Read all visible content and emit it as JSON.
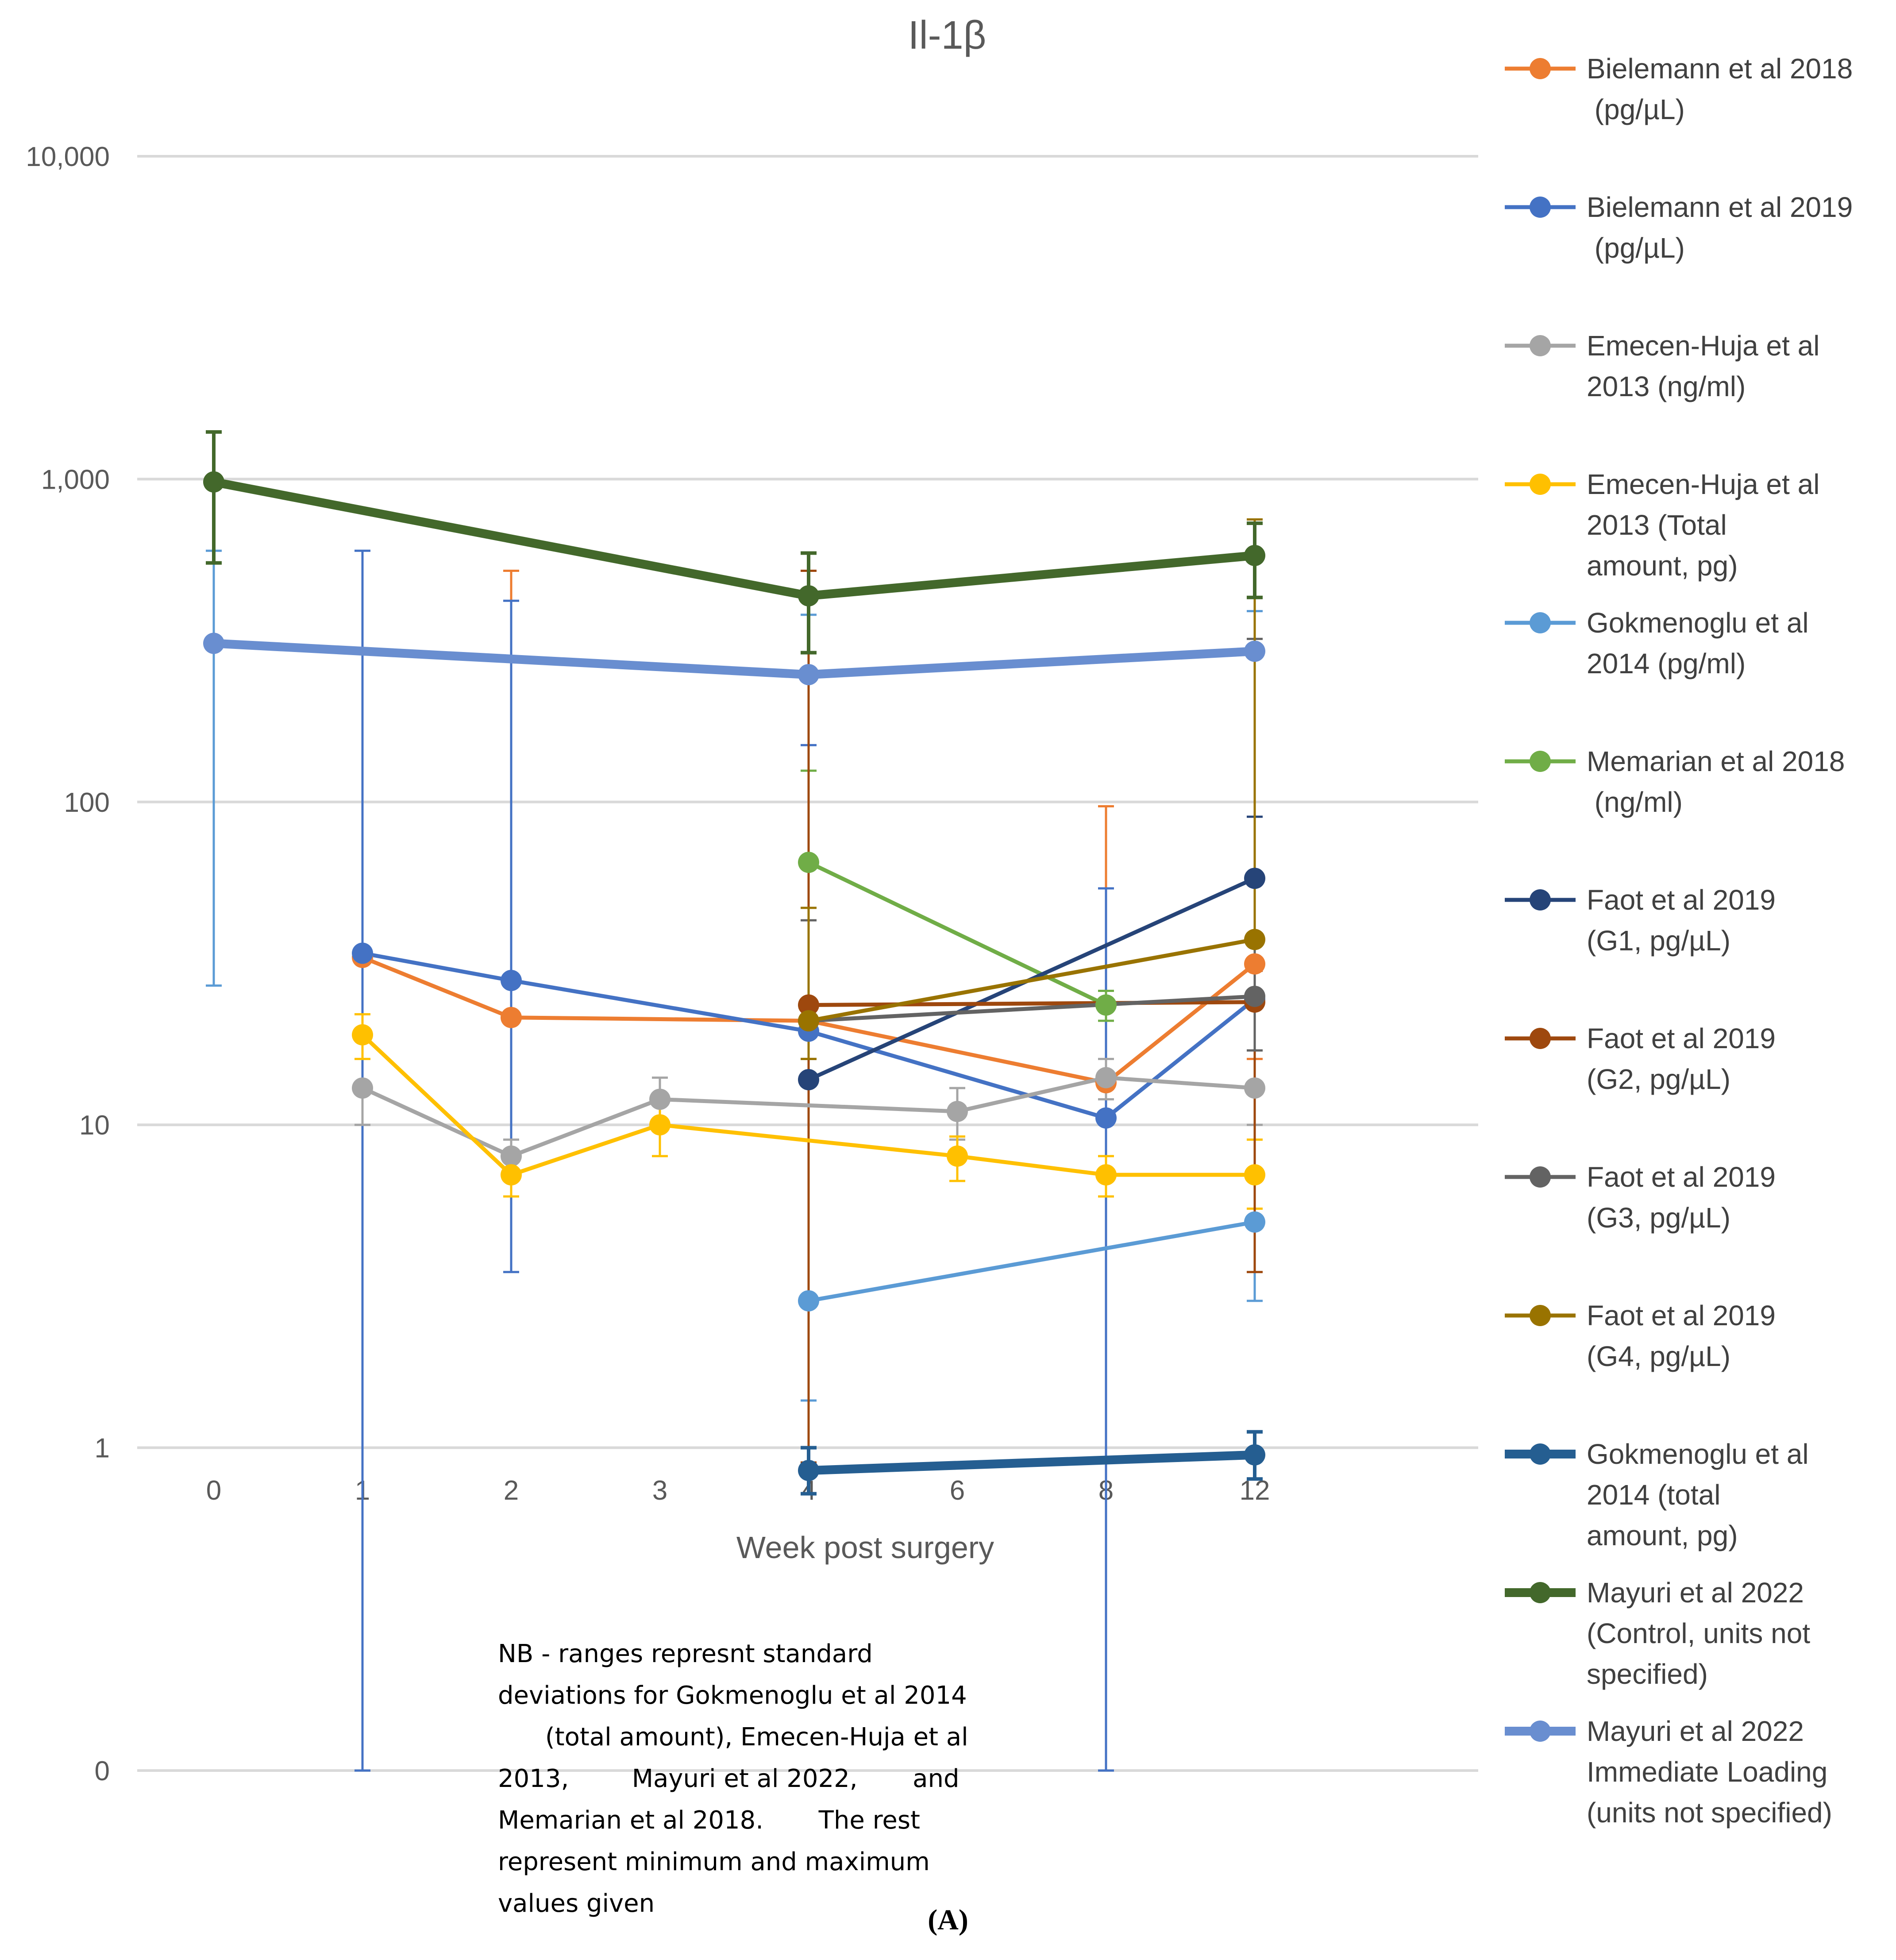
{
  "chart_data": {
    "type": "line",
    "title": "Il-1β",
    "xlabel": "Week post surgery",
    "ylabel": "",
    "yscale": "log",
    "ylim": [
      0.1,
      10000
    ],
    "categories": [
      "0",
      "1",
      "2",
      "3",
      "4",
      "6",
      "8",
      "12"
    ],
    "ytick_labels": [
      {
        "value": 10000,
        "label": "10,000"
      },
      {
        "value": 1000,
        "label": "1,000"
      },
      {
        "value": 100,
        "label": "100"
      },
      {
        "value": 10,
        "label": "10"
      },
      {
        "value": 1,
        "label": "1"
      },
      {
        "value": 0.1,
        "label": "0"
      }
    ],
    "grid": true,
    "legend_position": "right",
    "series": [
      {
        "name": "Bielemann et al 2018 (pg/µL)",
        "legend": [
          "Bielemann et al 2018",
          "      (pg/µL)"
        ],
        "color": "#ED7D31",
        "lw": 1,
        "points": [
          {
            "x": "1",
            "y": 33
          },
          {
            "x": "2",
            "y": 21.5
          },
          {
            "x": "4",
            "y": 21
          },
          {
            "x": "8",
            "y": 13.5
          },
          {
            "x": "12",
            "y": 31.5
          }
        ],
        "errors": [
          {
            "x": "2",
            "lo": 21.5,
            "hi": 520
          },
          {
            "x": "8",
            "lo": 13.5,
            "hi": 97
          },
          {
            "x": "12",
            "lo": 16,
            "hi": 31.5
          }
        ]
      },
      {
        "name": "Bielemann et al 2019 (pg/µL)",
        "legend": [
          "Bielemann  et al 2019",
          "       (pg/µL)"
        ],
        "color": "#4472C4",
        "lw": 1,
        "points": [
          {
            "x": "1",
            "y": 34
          },
          {
            "x": "2",
            "y": 28
          },
          {
            "x": "4",
            "y": 19.5
          },
          {
            "x": "8",
            "y": 10.5
          },
          {
            "x": "12",
            "y": 24.5
          }
        ],
        "errors": [
          {
            "x": "1",
            "lo": 0.1,
            "hi": 600
          },
          {
            "x": "2",
            "lo": 3.5,
            "hi": 420
          },
          {
            "x": "4",
            "lo": 19.5,
            "hi": 150
          },
          {
            "x": "8",
            "lo": 0.1,
            "hi": 54
          }
        ]
      },
      {
        "name": "Emecen-Huja et al 2013 (ng/ml)",
        "legend": [
          "Emecen-Huja et al",
          "2013        (ng/ml)"
        ],
        "color": "#A5A5A5",
        "lw": 1,
        "points": [
          {
            "x": "1",
            "y": 13
          },
          {
            "x": "2",
            "y": 8
          },
          {
            "x": "3",
            "y": 12
          },
          {
            "x": "6",
            "y": 11
          },
          {
            "x": "8",
            "y": 14
          },
          {
            "x": "12",
            "y": 13
          }
        ],
        "errors": [
          {
            "x": "1",
            "lo": 10,
            "hi": 13
          },
          {
            "x": "2",
            "lo": 8,
            "hi": 9
          },
          {
            "x": "3",
            "lo": 12,
            "hi": 14
          },
          {
            "x": "6",
            "lo": 9,
            "hi": 13
          },
          {
            "x": "8",
            "lo": 12,
            "hi": 16
          },
          {
            "x": "12",
            "lo": 10,
            "hi": 17
          }
        ]
      },
      {
        "name": "Emecen-Huja et al 2013 (Total amount, pg)",
        "legend": [
          "Emecen-Huja et al",
          "2013        (Total",
          "amount, pg)"
        ],
        "color": "#FFC000",
        "lw": 1,
        "points": [
          {
            "x": "1",
            "y": 19
          },
          {
            "x": "2",
            "y": 7
          },
          {
            "x": "3",
            "y": 10
          },
          {
            "x": "6",
            "y": 8
          },
          {
            "x": "8",
            "y": 7
          },
          {
            "x": "12",
            "y": 7
          }
        ],
        "errors": [
          {
            "x": "1",
            "lo": 16,
            "hi": 22
          },
          {
            "x": "2",
            "lo": 6,
            "hi": 8
          },
          {
            "x": "3",
            "lo": 8,
            "hi": 12
          },
          {
            "x": "6",
            "lo": 6.7,
            "hi": 9.2
          },
          {
            "x": "8",
            "lo": 6,
            "hi": 8
          },
          {
            "x": "12",
            "lo": 5.5,
            "hi": 9
          }
        ]
      },
      {
        "name": "Gokmenoglu et al 2014 (pg/ml)",
        "legend": [
          "Gokmenoglu et al",
          "2014        (pg/ml)"
        ],
        "color": "#5B9BD5",
        "lw": 1,
        "points": [
          {
            "x": "4",
            "y": 2.85
          },
          {
            "x": "12",
            "y": 5
          }
        ],
        "errors": [
          {
            "x": "0",
            "lo": 27,
            "hi": 600
          },
          {
            "x": "4",
            "lo": 1.4,
            "hi": 380
          },
          {
            "x": "12",
            "lo": 2.85,
            "hi": 390
          }
        ]
      },
      {
        "name": "Memarian et al 2018 (ng/ml)",
        "legend": [
          "Memarian et al 2018",
          "       (ng/ml)"
        ],
        "color": "#70AD47",
        "lw": 1,
        "points": [
          {
            "x": "4",
            "y": 65
          },
          {
            "x": "8",
            "y": 23.5
          }
        ],
        "errors": [
          {
            "x": "4",
            "lo": 21,
            "hi": 125
          },
          {
            "x": "8",
            "lo": 21,
            "hi": 26
          }
        ]
      },
      {
        "name": "Faot et al 2019 (G1, pg/µL)",
        "legend": [
          "Faot et al 2019",
          "(G1, pg/µL)"
        ],
        "color": "#264478",
        "lw": 1,
        "points": [
          {
            "x": "4",
            "y": 13.8
          },
          {
            "x": "12",
            "y": 58
          }
        ],
        "errors": [
          {
            "x": "12",
            "lo": 25,
            "hi": 90
          }
        ]
      },
      {
        "name": "Faot et al 2019 (G2, pg/µL)",
        "legend": [
          "Faot et al 2019",
          "(G2, pg/µL)"
        ],
        "color": "#9E480E",
        "lw": 1,
        "points": [
          {
            "x": "4",
            "y": 23.5
          },
          {
            "x": "12",
            "y": 24
          }
        ],
        "errors": [
          {
            "x": "4",
            "lo": 0.9,
            "hi": 520
          },
          {
            "x": "12",
            "lo": 3.5,
            "hi": 30
          }
        ]
      },
      {
        "name": "Faot et al 2019 (G3, pg/µL)",
        "legend": [
          "Faot et al 2019",
          "(G3, pg/µL)"
        ],
        "color": "#636363",
        "lw": 1,
        "points": [
          {
            "x": "4",
            "y": 21
          },
          {
            "x": "12",
            "y": 25
          }
        ],
        "errors": [
          {
            "x": "4",
            "lo": 16,
            "hi": 43
          },
          {
            "x": "12",
            "lo": 17,
            "hi": 320
          }
        ]
      },
      {
        "name": "Faot et al 2019 (G4, pg/µL)",
        "legend": [
          "Faot et al 2019",
          "(G4, pg/µL)"
        ],
        "color": "#997300",
        "lw": 1,
        "points": [
          {
            "x": "4",
            "y": 21
          },
          {
            "x": "12",
            "y": 37.5
          }
        ],
        "errors": [
          {
            "x": "4",
            "lo": 16,
            "hi": 47
          },
          {
            "x": "12",
            "lo": 37.5,
            "hi": 750
          }
        ]
      },
      {
        "name": "Gokmenoglu et al 2014 (total amount, pg)",
        "legend": [
          "Gokmenoglu et al",
          "2014        (total",
          "amount, pg)"
        ],
        "color": "#255E91",
        "lw": 2,
        "points": [
          {
            "x": "4",
            "y": 0.85
          },
          {
            "x": "12",
            "y": 0.95
          }
        ],
        "errors": [
          {
            "x": "4",
            "lo": 0.72,
            "hi": 1.0
          },
          {
            "x": "12",
            "lo": 0.8,
            "hi": 1.12
          }
        ]
      },
      {
        "name": "Mayuri et al 2022 (Control, units not specified)",
        "legend": [
          "Mayuri et al 2022",
          "(Control, units not",
          "specified)"
        ],
        "color": "#43682B",
        "lw": 2,
        "points": [
          {
            "x": "0",
            "y": 980
          },
          {
            "x": "4",
            "y": 435
          },
          {
            "x": "12",
            "y": 580
          }
        ],
        "errors": [
          {
            "x": "0",
            "lo": 550,
            "hi": 1400
          },
          {
            "x": "4",
            "lo": 290,
            "hi": 590
          },
          {
            "x": "12",
            "lo": 430,
            "hi": 730
          }
        ]
      },
      {
        "name": "Mayuri et al 2022 Immediate Loading (units not specified)",
        "legend": [
          "Mayuri et al 2022",
          "Immediate Loading",
          "(units not specified)"
        ],
        "color": "#698ED0",
        "lw": 2,
        "points": [
          {
            "x": "0",
            "y": 310
          },
          {
            "x": "4",
            "y": 248
          },
          {
            "x": "12",
            "y": 293
          }
        ],
        "errors": []
      }
    ]
  },
  "note": "NB - ranges represnt standard\ndeviations for Gokmenoglu et al 2014\n      (total amount), Emecen-Huja et al\n2013,        Mayuri et al 2022,       and\nMemarian et al 2018.       The rest\nrepresent minimum and maximum\nvalues given",
  "caption": "(A)"
}
